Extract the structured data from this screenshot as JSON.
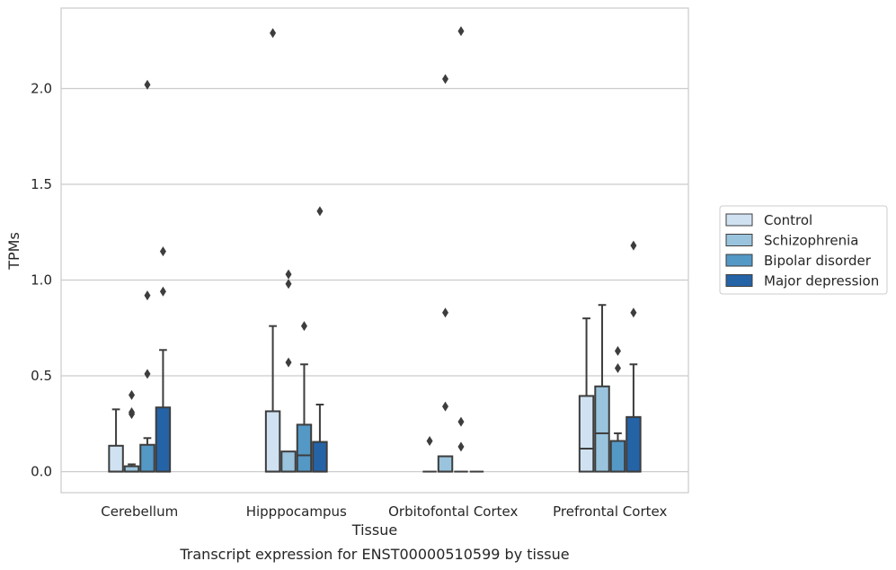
{
  "chart_data": {
    "type": "box",
    "xlabel": "Tissue",
    "ylabel": "TPMs",
    "caption": "Transcript expression for ENST00000510599 by tissue",
    "ylim": [
      -0.11,
      2.42
    ],
    "yticks": [
      "0.0",
      "0.5",
      "1.0",
      "1.5",
      "2.0"
    ],
    "ytick_values": [
      0.0,
      0.5,
      1.0,
      1.5,
      2.0
    ],
    "grid": "horizontal",
    "legend_placement": "right",
    "categories": [
      "Cerebellum",
      "Hipppocampus",
      "Orbitofontal Cortex",
      "Prefrontal Cortex"
    ],
    "series": [
      {
        "name": "Control",
        "color": "#d0e2f2",
        "boxes": [
          {
            "q1": 0.0,
            "median": 0.0,
            "q3": 0.135,
            "whisker_low": 0.0,
            "whisker_high": 0.325,
            "outliers": []
          },
          {
            "q1": 0.0,
            "median": 0.0,
            "q3": 0.315,
            "whisker_low": 0.0,
            "whisker_high": 0.76,
            "outliers": [
              2.29
            ]
          },
          {
            "q1": 0.0,
            "median": 0.0,
            "q3": 0.0,
            "whisker_low": 0.0,
            "whisker_high": 0.0,
            "outliers": [
              0.16
            ]
          },
          {
            "q1": 0.0,
            "median": 0.12,
            "q3": 0.395,
            "whisker_low": 0.0,
            "whisker_high": 0.8,
            "outliers": []
          }
        ]
      },
      {
        "name": "Schizophrenia",
        "color": "#9ac4dd",
        "boxes": [
          {
            "q1": 0.0,
            "median": 0.0,
            "q3": 0.028,
            "whisker_low": 0.0,
            "whisker_high": 0.038,
            "outliers": [
              0.3,
              0.31,
              0.4
            ]
          },
          {
            "q1": 0.0,
            "median": 0.0,
            "q3": 0.105,
            "whisker_low": 0.0,
            "whisker_high": 0.105,
            "outliers": [
              0.57,
              0.98,
              1.03
            ]
          },
          {
            "q1": 0.0,
            "median": 0.0,
            "q3": 0.08,
            "whisker_low": 0.0,
            "whisker_high": 0.08,
            "outliers": [
              0.34,
              0.83,
              2.05
            ]
          },
          {
            "q1": 0.0,
            "median": 0.2,
            "q3": 0.445,
            "whisker_low": 0.0,
            "whisker_high": 0.87,
            "outliers": []
          }
        ]
      },
      {
        "name": "Bipolar disorder",
        "color": "#5498c6",
        "boxes": [
          {
            "q1": 0.0,
            "median": 0.0,
            "q3": 0.14,
            "whisker_low": 0.0,
            "whisker_high": 0.175,
            "outliers": [
              0.51,
              0.92,
              2.02
            ]
          },
          {
            "q1": 0.0,
            "median": 0.085,
            "q3": 0.245,
            "whisker_low": 0.0,
            "whisker_high": 0.56,
            "outliers": [
              0.76
            ]
          },
          {
            "q1": 0.0,
            "median": 0.0,
            "q3": 0.0,
            "whisker_low": 0.0,
            "whisker_high": 0.0,
            "outliers": [
              0.13,
              0.26,
              2.3
            ]
          },
          {
            "q1": 0.0,
            "median": 0.0,
            "q3": 0.16,
            "whisker_low": 0.0,
            "whisker_high": 0.2,
            "outliers": [
              0.54,
              0.63
            ]
          }
        ]
      },
      {
        "name": "Major depression",
        "color": "#2563a7",
        "boxes": [
          {
            "q1": 0.0,
            "median": 0.0,
            "q3": 0.335,
            "whisker_low": 0.0,
            "whisker_high": 0.635,
            "outliers": [
              0.94,
              1.15
            ]
          },
          {
            "q1": 0.0,
            "median": 0.0,
            "q3": 0.155,
            "whisker_low": 0.0,
            "whisker_high": 0.35,
            "outliers": [
              1.36
            ]
          },
          {
            "q1": 0.0,
            "median": 0.0,
            "q3": 0.0,
            "whisker_low": 0.0,
            "whisker_high": 0.0,
            "outliers": []
          },
          {
            "q1": 0.0,
            "median": 0.0,
            "q3": 0.285,
            "whisker_low": 0.0,
            "whisker_high": 0.56,
            "outliers": [
              0.83,
              1.18
            ]
          }
        ]
      }
    ]
  }
}
